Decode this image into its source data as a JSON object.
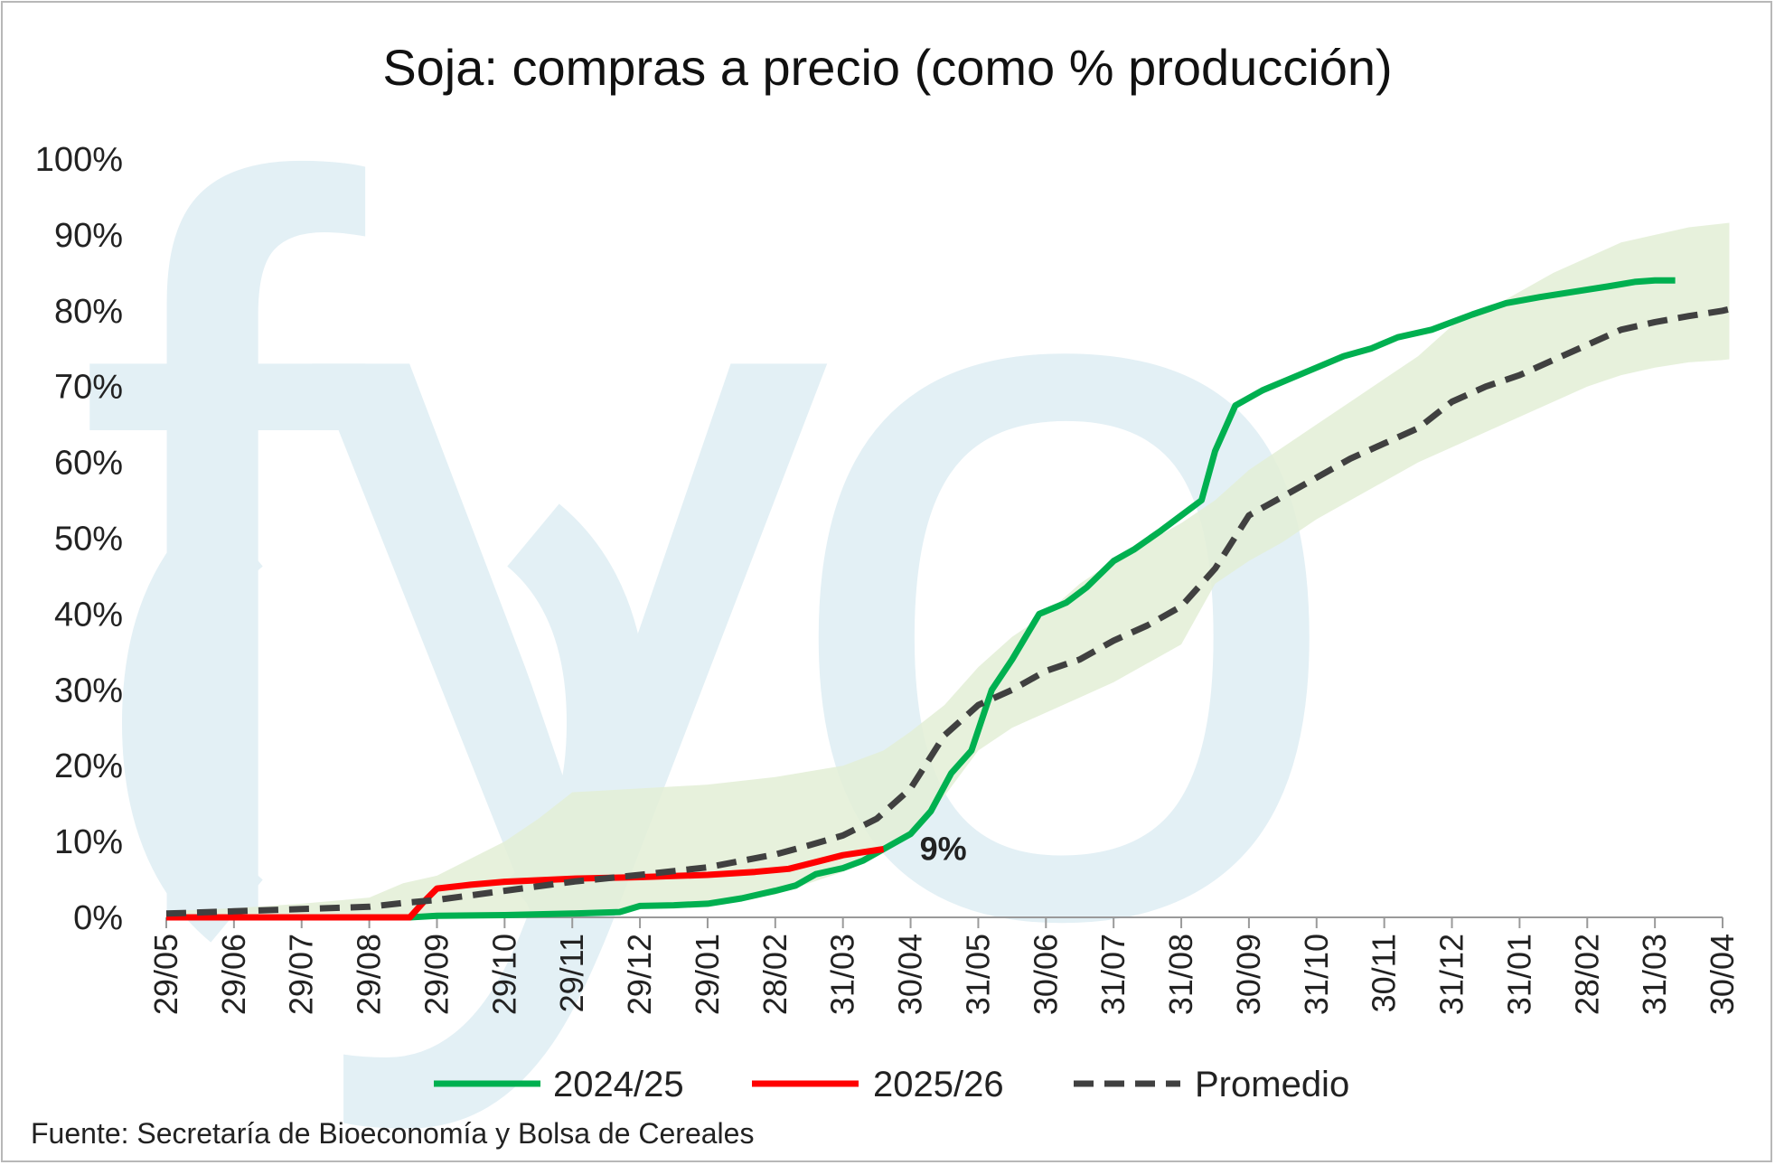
{
  "colors": {
    "series_2024": "#00b050",
    "series_2025": "#ff0000",
    "average": "#404040",
    "band": "#e3efd6",
    "watermark": "#e3f0f5",
    "axis": "#9a9a9a"
  },
  "watermark": {
    "text": "fyo"
  },
  "chart_data": {
    "type": "line",
    "title": "Soja: compras a precio (como % producción)",
    "xlabel": "",
    "ylabel": "",
    "ylim": [
      0,
      100
    ],
    "y_ticks": [
      "0%",
      "10%",
      "20%",
      "30%",
      "40%",
      "50%",
      "60%",
      "70%",
      "80%",
      "90%",
      "100%"
    ],
    "x_ticks": [
      "29/05",
      "29/06",
      "29/07",
      "29/08",
      "29/09",
      "29/10",
      "29/11",
      "29/12",
      "29/01",
      "28/02",
      "31/03",
      "30/04",
      "31/05",
      "30/06",
      "31/07",
      "31/08",
      "30/09",
      "31/10",
      "30/11",
      "31/12",
      "31/01",
      "28/02",
      "31/03",
      "30/04"
    ],
    "x_unit": "months since 29/05",
    "legend_position": "bottom",
    "grid": false,
    "series": [
      {
        "name": "2024/25",
        "color_key": "series_2024",
        "style": "solid",
        "points": [
          [
            0,
            0
          ],
          [
            3,
            0
          ],
          [
            3.6,
            0
          ],
          [
            4,
            0.2
          ],
          [
            5,
            0.3
          ],
          [
            6,
            0.5
          ],
          [
            6.7,
            0.7
          ],
          [
            7,
            1.5
          ],
          [
            7.5,
            1.6
          ],
          [
            8,
            1.8
          ],
          [
            8.5,
            2.5
          ],
          [
            9,
            3.5
          ],
          [
            9.3,
            4.2
          ],
          [
            9.6,
            5.7
          ],
          [
            10,
            6.5
          ],
          [
            10.3,
            7.5
          ],
          [
            10.6,
            9.0
          ],
          [
            11,
            11.0
          ],
          [
            11.3,
            14
          ],
          [
            11.6,
            19
          ],
          [
            11.9,
            22
          ],
          [
            12.2,
            30
          ],
          [
            12.5,
            34
          ],
          [
            12.9,
            40
          ],
          [
            13.3,
            41.5
          ],
          [
            13.6,
            43.5
          ],
          [
            14,
            47
          ],
          [
            14.3,
            48.5
          ],
          [
            14.7,
            51
          ],
          [
            15,
            53
          ],
          [
            15.3,
            55
          ],
          [
            15.5,
            61.5
          ],
          [
            15.8,
            67.5
          ],
          [
            16.2,
            69.5
          ],
          [
            16.6,
            71
          ],
          [
            17,
            72.5
          ],
          [
            17.4,
            74
          ],
          [
            17.8,
            75
          ],
          [
            18.2,
            76.5
          ],
          [
            18.7,
            77.5
          ],
          [
            19.3,
            79.5
          ],
          [
            19.8,
            81
          ],
          [
            20.3,
            81.8
          ],
          [
            20.8,
            82.5
          ],
          [
            21.3,
            83.2
          ],
          [
            21.7,
            83.8
          ],
          [
            22,
            84
          ],
          [
            22.3,
            84
          ]
        ]
      },
      {
        "name": "2025/26",
        "color_key": "series_2025",
        "style": "solid",
        "points": [
          [
            0,
            0
          ],
          [
            3.6,
            0
          ],
          [
            3.8,
            2
          ],
          [
            4,
            3.8
          ],
          [
            4.5,
            4.3
          ],
          [
            5,
            4.7
          ],
          [
            6,
            5.1
          ],
          [
            7,
            5.3
          ],
          [
            8,
            5.6
          ],
          [
            8.7,
            6.0
          ],
          [
            9.2,
            6.4
          ],
          [
            9.6,
            7.3
          ],
          [
            10,
            8.2
          ],
          [
            10.3,
            8.6
          ],
          [
            10.6,
            9.0
          ]
        ]
      },
      {
        "name": "Promedio",
        "color_key": "average",
        "style": "dashed",
        "points": [
          [
            0,
            0.5
          ],
          [
            1,
            0.8
          ],
          [
            2,
            1.1
          ],
          [
            3,
            1.4
          ],
          [
            3.5,
            1.9
          ],
          [
            4,
            2.3
          ],
          [
            5,
            3.5
          ],
          [
            6,
            4.7
          ],
          [
            7,
            5.6
          ],
          [
            8,
            6.6
          ],
          [
            9,
            8.3
          ],
          [
            9.5,
            9.5
          ],
          [
            10,
            10.8
          ],
          [
            10.5,
            13
          ],
          [
            11,
            17
          ],
          [
            11.5,
            24
          ],
          [
            12,
            28
          ],
          [
            12.5,
            30
          ],
          [
            13,
            32.5
          ],
          [
            13.5,
            34
          ],
          [
            14,
            36.5
          ],
          [
            14.5,
            38.5
          ],
          [
            15,
            41
          ],
          [
            15.5,
            46
          ],
          [
            16,
            53
          ],
          [
            16.5,
            55.5
          ],
          [
            17,
            58
          ],
          [
            17.5,
            60.5
          ],
          [
            18,
            62.5
          ],
          [
            18.5,
            64.5
          ],
          [
            19,
            68
          ],
          [
            19.5,
            70
          ],
          [
            20,
            71.5
          ],
          [
            20.5,
            73.5
          ],
          [
            21,
            75.5
          ],
          [
            21.5,
            77.5
          ],
          [
            22,
            78.5
          ],
          [
            22.5,
            79.3
          ],
          [
            23,
            80
          ],
          [
            23.1,
            80.2
          ]
        ]
      }
    ],
    "band": {
      "upper": [
        [
          0,
          0.8
        ],
        [
          1,
          1.2
        ],
        [
          2,
          1.8
        ],
        [
          3,
          2.6
        ],
        [
          3.5,
          4.5
        ],
        [
          4,
          5.5
        ],
        [
          5,
          10
        ],
        [
          5.5,
          13
        ],
        [
          6,
          16.5
        ],
        [
          7,
          17
        ],
        [
          8,
          17.5
        ],
        [
          9,
          18.5
        ],
        [
          10,
          20
        ],
        [
          10.6,
          22
        ],
        [
          11,
          24.5
        ],
        [
          11.5,
          28
        ],
        [
          12,
          33
        ],
        [
          12.5,
          37
        ],
        [
          13,
          40
        ],
        [
          13.5,
          44
        ],
        [
          14,
          47
        ],
        [
          15,
          52
        ],
        [
          15.5,
          55
        ],
        [
          16,
          59
        ],
        [
          16.5,
          62
        ],
        [
          17,
          65
        ],
        [
          17.5,
          68
        ],
        [
          18,
          71
        ],
        [
          18.5,
          74
        ],
        [
          19,
          78
        ],
        [
          19.5,
          80
        ],
        [
          20,
          82.5
        ],
        [
          20.5,
          85
        ],
        [
          21,
          87
        ],
        [
          21.5,
          89
        ],
        [
          22,
          90
        ],
        [
          22.5,
          91
        ],
        [
          23,
          91.5
        ],
        [
          23.1,
          91.6
        ]
      ],
      "lower": [
        [
          0,
          0
        ],
        [
          4,
          0
        ],
        [
          5,
          0.3
        ],
        [
          6,
          0.6
        ],
        [
          7,
          1.2
        ],
        [
          8,
          1.8
        ],
        [
          9,
          3
        ],
        [
          9.5,
          4.5
        ],
        [
          10,
          6
        ],
        [
          10.5,
          8
        ],
        [
          11,
          11
        ],
        [
          11.5,
          16
        ],
        [
          12,
          22
        ],
        [
          12.5,
          25
        ],
        [
          13,
          27
        ],
        [
          13.5,
          29
        ],
        [
          14,
          31
        ],
        [
          14.5,
          33.5
        ],
        [
          15,
          36
        ],
        [
          15.5,
          44
        ],
        [
          16,
          47
        ],
        [
          16.5,
          49.5
        ],
        [
          17,
          52.5
        ],
        [
          17.5,
          55
        ],
        [
          18,
          57.5
        ],
        [
          18.5,
          60
        ],
        [
          19,
          62
        ],
        [
          19.5,
          64
        ],
        [
          20,
          66
        ],
        [
          20.5,
          68
        ],
        [
          21,
          70
        ],
        [
          21.5,
          71.5
        ],
        [
          22,
          72.5
        ],
        [
          22.5,
          73.2
        ],
        [
          23,
          73.5
        ],
        [
          23.1,
          73.6
        ]
      ]
    },
    "annotations": [
      {
        "text": "9%",
        "x": 10.6,
        "y": 9.0
      }
    ]
  },
  "source": "Fuente: Secretaría de Bioeconomía y Bolsa de Cereales"
}
